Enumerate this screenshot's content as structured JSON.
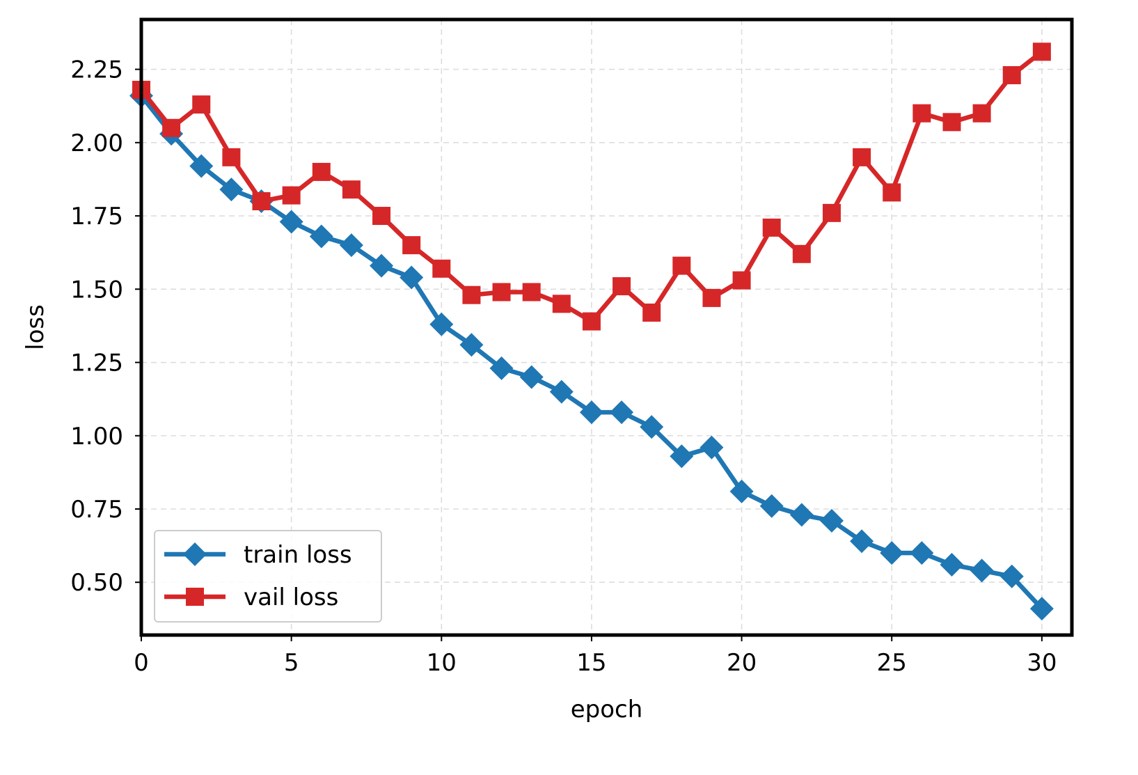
{
  "chart_data": {
    "type": "line",
    "xlabel": "epoch",
    "ylabel": "loss",
    "xlim": [
      0,
      31
    ],
    "ylim": [
      0.32,
      2.42
    ],
    "xticks": [
      0,
      5,
      10,
      15,
      20,
      25,
      30
    ],
    "xtick_labels": [
      "0",
      "5",
      "10",
      "15",
      "20",
      "25",
      "30"
    ],
    "yticks": [
      0.5,
      0.75,
      1.0,
      1.25,
      1.5,
      1.75,
      2.0,
      2.25
    ],
    "ytick_labels": [
      "0.50",
      "0.75",
      "1.00",
      "1.25",
      "1.50",
      "1.75",
      "2.00",
      "2.25"
    ],
    "grid": true,
    "legend_position": "lower-left",
    "x": [
      0,
      1,
      2,
      3,
      4,
      5,
      6,
      7,
      8,
      9,
      10,
      11,
      12,
      13,
      14,
      15,
      16,
      17,
      18,
      19,
      20,
      21,
      22,
      23,
      24,
      25,
      26,
      27,
      28,
      29,
      30
    ],
    "series": [
      {
        "name": "train loss",
        "color": "#1f77b4",
        "marker": "diamond",
        "values": [
          2.16,
          2.03,
          1.92,
          1.84,
          1.8,
          1.73,
          1.68,
          1.65,
          1.58,
          1.54,
          1.38,
          1.31,
          1.23,
          1.2,
          1.15,
          1.08,
          1.08,
          1.03,
          0.93,
          0.96,
          0.81,
          0.76,
          0.73,
          0.71,
          0.64,
          0.6,
          0.6,
          0.56,
          0.54,
          0.52,
          0.41
        ]
      },
      {
        "name": "vail loss",
        "color": "#d62728",
        "marker": "square",
        "values": [
          2.18,
          2.05,
          2.13,
          1.95,
          1.8,
          1.82,
          1.9,
          1.84,
          1.75,
          1.65,
          1.57,
          1.48,
          1.49,
          1.49,
          1.45,
          1.39,
          1.51,
          1.42,
          1.58,
          1.47,
          1.53,
          1.71,
          1.62,
          1.76,
          1.95,
          1.83,
          2.1,
          2.07,
          2.1,
          2.23,
          2.31
        ]
      }
    ]
  }
}
